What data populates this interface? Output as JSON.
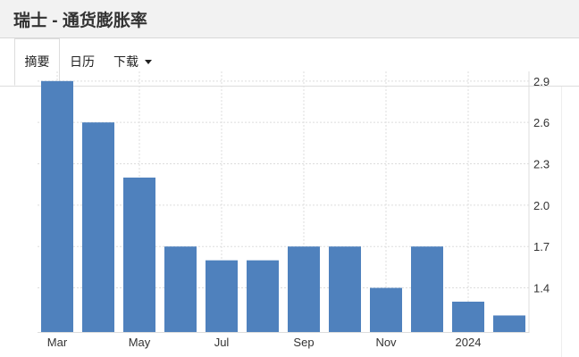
{
  "header": {
    "title": "瑞士 - 通货膨胀率"
  },
  "tabs": [
    {
      "label": "摘要",
      "active": true
    },
    {
      "label": "日历"
    },
    {
      "label": "下载",
      "dropdown": true
    }
  ],
  "colors": {
    "bar": "#4f81bd",
    "grid": "#dddddd",
    "header_bg": "#f2f2f2"
  },
  "chart_data": {
    "type": "bar",
    "categories": [
      "Mar 2023",
      "Apr 2023",
      "May 2023",
      "Jun 2023",
      "Jul 2023",
      "Aug 2023",
      "Sep 2023",
      "Oct 2023",
      "Nov 2023",
      "Dec 2023",
      "Jan 2024",
      "Feb 2024"
    ],
    "values": [
      2.9,
      2.6,
      2.2,
      1.7,
      1.6,
      1.6,
      1.7,
      1.7,
      1.4,
      1.7,
      1.3,
      1.2
    ],
    "x_tick_labels": [
      {
        "label": "Mar",
        "index": 0
      },
      {
        "label": "May",
        "index": 2
      },
      {
        "label": "Jul",
        "index": 4
      },
      {
        "label": "Sep",
        "index": 6
      },
      {
        "label": "Nov",
        "index": 8
      },
      {
        "label": "2024",
        "index": 10
      }
    ],
    "y_ticks": [
      "2.9",
      "2.6",
      "2.3",
      "2.0",
      "1.7",
      "1.4"
    ],
    "ylim": [
      1.08,
      2.97
    ],
    "y_axis_position": "right",
    "grid": true,
    "title": "",
    "xlabel": "",
    "ylabel": ""
  }
}
